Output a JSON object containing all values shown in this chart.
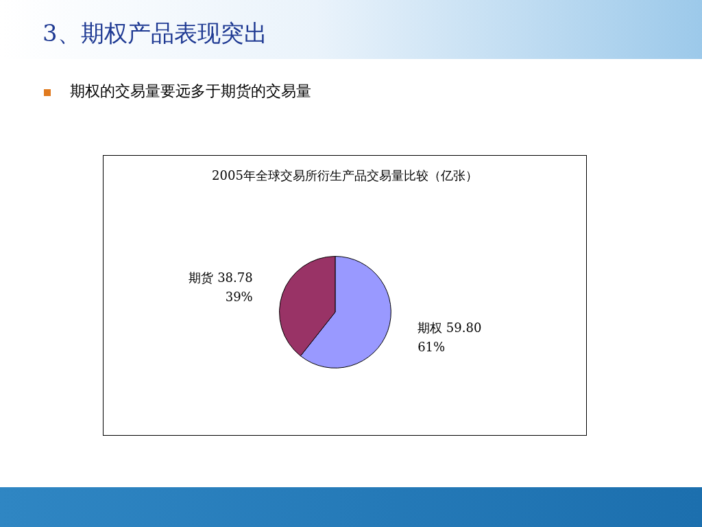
{
  "chart_data": {
    "type": "pie",
    "title": "2005年全球交易所衍生产品交易量比较（亿张）",
    "annotations": [
      "3、期权产品表现突出",
      "期权的交易量要远多于期货的交易量"
    ],
    "categories": [
      "期权",
      "期货"
    ],
    "values": [
      59.8,
      38.78
    ],
    "colors": [
      "#9999ff",
      "#993366"
    ],
    "value_labels": [
      "59.80\n61%",
      "38.78\n39%"
    ],
    "legend": false
  }
}
